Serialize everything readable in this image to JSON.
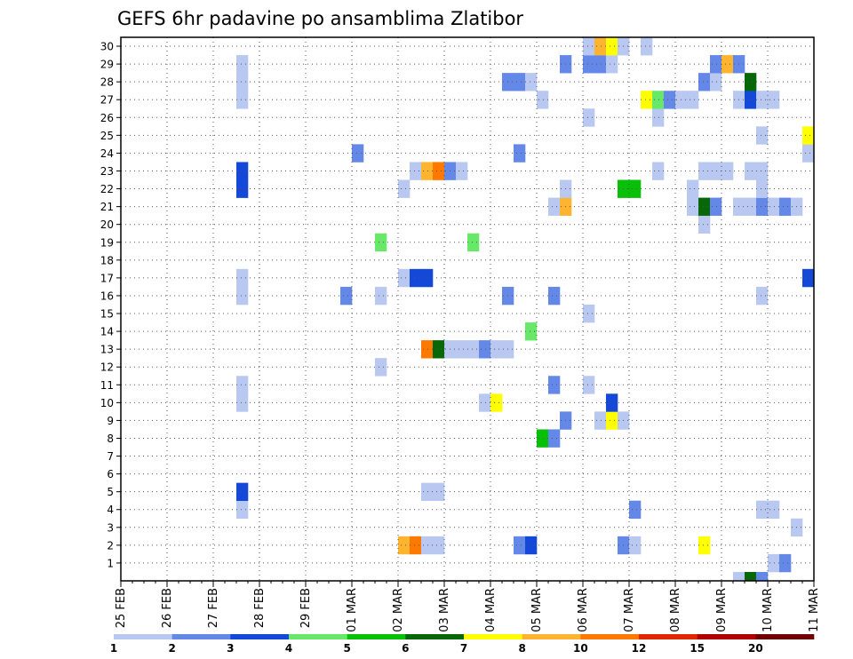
{
  "chart_data": {
    "type": "heatmap",
    "title": "GEFS 6hr padavine po ansamblima Zlatibor",
    "y_categories": [
      "1",
      "2",
      "3",
      "4",
      "5",
      "6",
      "7",
      "8",
      "9",
      "10",
      "11",
      "12",
      "13",
      "14",
      "15",
      "16",
      "17",
      "18",
      "19",
      "20",
      "21",
      "22",
      "23",
      "24",
      "25",
      "26",
      "27",
      "28",
      "29",
      "30"
    ],
    "x_tick_labels": [
      "25 FEB",
      "26 FEB",
      "27 FEB",
      "28 FEB",
      "29 FEB",
      "01 MAR",
      "02 MAR",
      "03 MAR",
      "04 MAR",
      "05 MAR",
      "06 MAR",
      "07 MAR",
      "08 MAR",
      "09 MAR",
      "10 MAR",
      "11 MAR"
    ],
    "time_steps_per_day": 4,
    "grid": true,
    "legend": {
      "placement": "bottom",
      "labels": [
        "1",
        "2",
        "3",
        "4",
        "5",
        "6",
        "7",
        "8",
        "10",
        "12",
        "15",
        "20"
      ],
      "colors": [
        "#b8c8f0",
        "#6488e8",
        "#1448d8",
        "#68e868",
        "#08c008",
        "#086808",
        "#ffff00",
        "#ffb430",
        "#ff7800",
        "#e02800",
        "#b00000",
        "#700000"
      ]
    },
    "levels": [
      1,
      2,
      3,
      4,
      5,
      6,
      7,
      8,
      10,
      12,
      15,
      20
    ],
    "cells": [
      {
        "member": 1,
        "step": 56,
        "bin": 0
      },
      {
        "member": 1,
        "step": 57,
        "bin": 1
      },
      {
        "member": 2,
        "step": 24,
        "bin": 7
      },
      {
        "member": 2,
        "step": 25,
        "bin": 8
      },
      {
        "member": 2,
        "step": 26,
        "bin": 0
      },
      {
        "member": 2,
        "step": 27,
        "bin": 0
      },
      {
        "member": 2,
        "step": 34,
        "bin": 1
      },
      {
        "member": 2,
        "step": 35,
        "bin": 2
      },
      {
        "member": 2,
        "step": 43,
        "bin": 1
      },
      {
        "member": 2,
        "step": 44,
        "bin": 0
      },
      {
        "member": 2,
        "step": 50,
        "bin": 6
      },
      {
        "member": 3,
        "step": 58,
        "bin": 0
      },
      {
        "member": 4,
        "step": 10,
        "bin": 0
      },
      {
        "member": 4,
        "step": 44,
        "bin": 1
      },
      {
        "member": 4,
        "step": 55,
        "bin": 0
      },
      {
        "member": 4,
        "step": 56,
        "bin": 0
      },
      {
        "member": 5,
        "step": 10,
        "bin": 2
      },
      {
        "member": 5,
        "step": 26,
        "bin": 0
      },
      {
        "member": 5,
        "step": 27,
        "bin": 0
      },
      {
        "member": 8,
        "step": 36,
        "bin": 4
      },
      {
        "member": 8,
        "step": 37,
        "bin": 1
      },
      {
        "member": 9,
        "step": 38,
        "bin": 1
      },
      {
        "member": 9,
        "step": 41,
        "bin": 0
      },
      {
        "member": 9,
        "step": 42,
        "bin": 6
      },
      {
        "member": 9,
        "step": 43,
        "bin": 0
      },
      {
        "member": 10,
        "step": 10,
        "bin": 0
      },
      {
        "member": 10,
        "step": 31,
        "bin": 0
      },
      {
        "member": 10,
        "step": 32,
        "bin": 6
      },
      {
        "member": 10,
        "step": 42,
        "bin": 2
      },
      {
        "member": 11,
        "step": 10,
        "bin": 0
      },
      {
        "member": 11,
        "step": 37,
        "bin": 1
      },
      {
        "member": 11,
        "step": 40,
        "bin": 0
      },
      {
        "member": 12,
        "step": 22,
        "bin": 0
      },
      {
        "member": 13,
        "step": 26,
        "bin": 8
      },
      {
        "member": 13,
        "step": 27,
        "bin": 5
      },
      {
        "member": 13,
        "step": 28,
        "bin": 0
      },
      {
        "member": 13,
        "step": 29,
        "bin": 0
      },
      {
        "member": 13,
        "step": 30,
        "bin": 0
      },
      {
        "member": 13,
        "step": 31,
        "bin": 1
      },
      {
        "member": 13,
        "step": 32,
        "bin": 0
      },
      {
        "member": 13,
        "step": 33,
        "bin": 0
      },
      {
        "member": 14,
        "step": 35,
        "bin": 3
      },
      {
        "member": 15,
        "step": 40,
        "bin": 0
      },
      {
        "member": 16,
        "step": 10,
        "bin": 0
      },
      {
        "member": 16,
        "step": 19,
        "bin": 1
      },
      {
        "member": 16,
        "step": 22,
        "bin": 0
      },
      {
        "member": 16,
        "step": 33,
        "bin": 1
      },
      {
        "member": 16,
        "step": 37,
        "bin": 1
      },
      {
        "member": 16,
        "step": 55,
        "bin": 0
      },
      {
        "member": 17,
        "step": 10,
        "bin": 0
      },
      {
        "member": 17,
        "step": 24,
        "bin": 0
      },
      {
        "member": 17,
        "step": 25,
        "bin": 2
      },
      {
        "member": 17,
        "step": 26,
        "bin": 2
      },
      {
        "member": 17,
        "step": 59,
        "bin": 2
      },
      {
        "member": 19,
        "step": 22,
        "bin": 3
      },
      {
        "member": 19,
        "step": 30,
        "bin": 3
      },
      {
        "member": 20,
        "step": 50,
        "bin": 0
      },
      {
        "member": 21,
        "step": 37,
        "bin": 0
      },
      {
        "member": 21,
        "step": 38,
        "bin": 7
      },
      {
        "member": 21,
        "step": 49,
        "bin": 0
      },
      {
        "member": 21,
        "step": 50,
        "bin": 5
      },
      {
        "member": 21,
        "step": 51,
        "bin": 1
      },
      {
        "member": 21,
        "step": 53,
        "bin": 0
      },
      {
        "member": 21,
        "step": 54,
        "bin": 0
      },
      {
        "member": 21,
        "step": 55,
        "bin": 1
      },
      {
        "member": 21,
        "step": 56,
        "bin": 0
      },
      {
        "member": 21,
        "step": 57,
        "bin": 1
      },
      {
        "member": 21,
        "step": 58,
        "bin": 0
      },
      {
        "member": 22,
        "step": 10,
        "bin": 2
      },
      {
        "member": 22,
        "step": 24,
        "bin": 0
      },
      {
        "member": 22,
        "step": 38,
        "bin": 0
      },
      {
        "member": 22,
        "step": 43,
        "bin": 4
      },
      {
        "member": 22,
        "step": 44,
        "bin": 4
      },
      {
        "member": 22,
        "step": 49,
        "bin": 0
      },
      {
        "member": 22,
        "step": 55,
        "bin": 0
      },
      {
        "member": 23,
        "step": 10,
        "bin": 2
      },
      {
        "member": 23,
        "step": 25,
        "bin": 0
      },
      {
        "member": 23,
        "step": 26,
        "bin": 7
      },
      {
        "member": 23,
        "step": 27,
        "bin": 8
      },
      {
        "member": 23,
        "step": 28,
        "bin": 1
      },
      {
        "member": 23,
        "step": 29,
        "bin": 0
      },
      {
        "member": 23,
        "step": 46,
        "bin": 0
      },
      {
        "member": 23,
        "step": 50,
        "bin": 0
      },
      {
        "member": 23,
        "step": 51,
        "bin": 0
      },
      {
        "member": 23,
        "step": 52,
        "bin": 0
      },
      {
        "member": 23,
        "step": 54,
        "bin": 0
      },
      {
        "member": 23,
        "step": 55,
        "bin": 0
      },
      {
        "member": 24,
        "step": 20,
        "bin": 1
      },
      {
        "member": 24,
        "step": 34,
        "bin": 1
      },
      {
        "member": 24,
        "step": 59,
        "bin": 0
      },
      {
        "member": 25,
        "step": 55,
        "bin": 0
      },
      {
        "member": 25,
        "step": 59,
        "bin": 6
      },
      {
        "member": 26,
        "step": 40,
        "bin": 0
      },
      {
        "member": 26,
        "step": 46,
        "bin": 0
      },
      {
        "member": 27,
        "step": 10,
        "bin": 0
      },
      {
        "member": 27,
        "step": 36,
        "bin": 0
      },
      {
        "member": 27,
        "step": 45,
        "bin": 6
      },
      {
        "member": 27,
        "step": 46,
        "bin": 3
      },
      {
        "member": 27,
        "step": 47,
        "bin": 1
      },
      {
        "member": 27,
        "step": 48,
        "bin": 0
      },
      {
        "member": 27,
        "step": 49,
        "bin": 0
      },
      {
        "member": 27,
        "step": 53,
        "bin": 0
      },
      {
        "member": 27,
        "step": 54,
        "bin": 2
      },
      {
        "member": 27,
        "step": 55,
        "bin": 0
      },
      {
        "member": 27,
        "step": 56,
        "bin": 0
      },
      {
        "member": 28,
        "step": 10,
        "bin": 0
      },
      {
        "member": 28,
        "step": 33,
        "bin": 1
      },
      {
        "member": 28,
        "step": 34,
        "bin": 1
      },
      {
        "member": 28,
        "step": 35,
        "bin": 0
      },
      {
        "member": 28,
        "step": 50,
        "bin": 1
      },
      {
        "member": 28,
        "step": 51,
        "bin": 0
      },
      {
        "member": 28,
        "step": 54,
        "bin": 5
      },
      {
        "member": 29,
        "step": 10,
        "bin": 0
      },
      {
        "member": 29,
        "step": 38,
        "bin": 1
      },
      {
        "member": 29,
        "step": 40,
        "bin": 1
      },
      {
        "member": 29,
        "step": 41,
        "bin": 1
      },
      {
        "member": 29,
        "step": 42,
        "bin": 0
      },
      {
        "member": 29,
        "step": 51,
        "bin": 1
      },
      {
        "member": 29,
        "step": 52,
        "bin": 7
      },
      {
        "member": 29,
        "step": 53,
        "bin": 1
      },
      {
        "member": 30,
        "step": 40,
        "bin": 0
      },
      {
        "member": 30,
        "step": 41,
        "bin": 7
      },
      {
        "member": 30,
        "step": 42,
        "bin": 6
      },
      {
        "member": 30,
        "step": 43,
        "bin": 0
      },
      {
        "member": 30,
        "step": 45,
        "bin": 0
      },
      {
        "member": 0,
        "step": 53,
        "bin": 0
      },
      {
        "member": 0,
        "step": 54,
        "bin": 5
      },
      {
        "member": 0,
        "step": 55,
        "bin": 1
      }
    ]
  }
}
